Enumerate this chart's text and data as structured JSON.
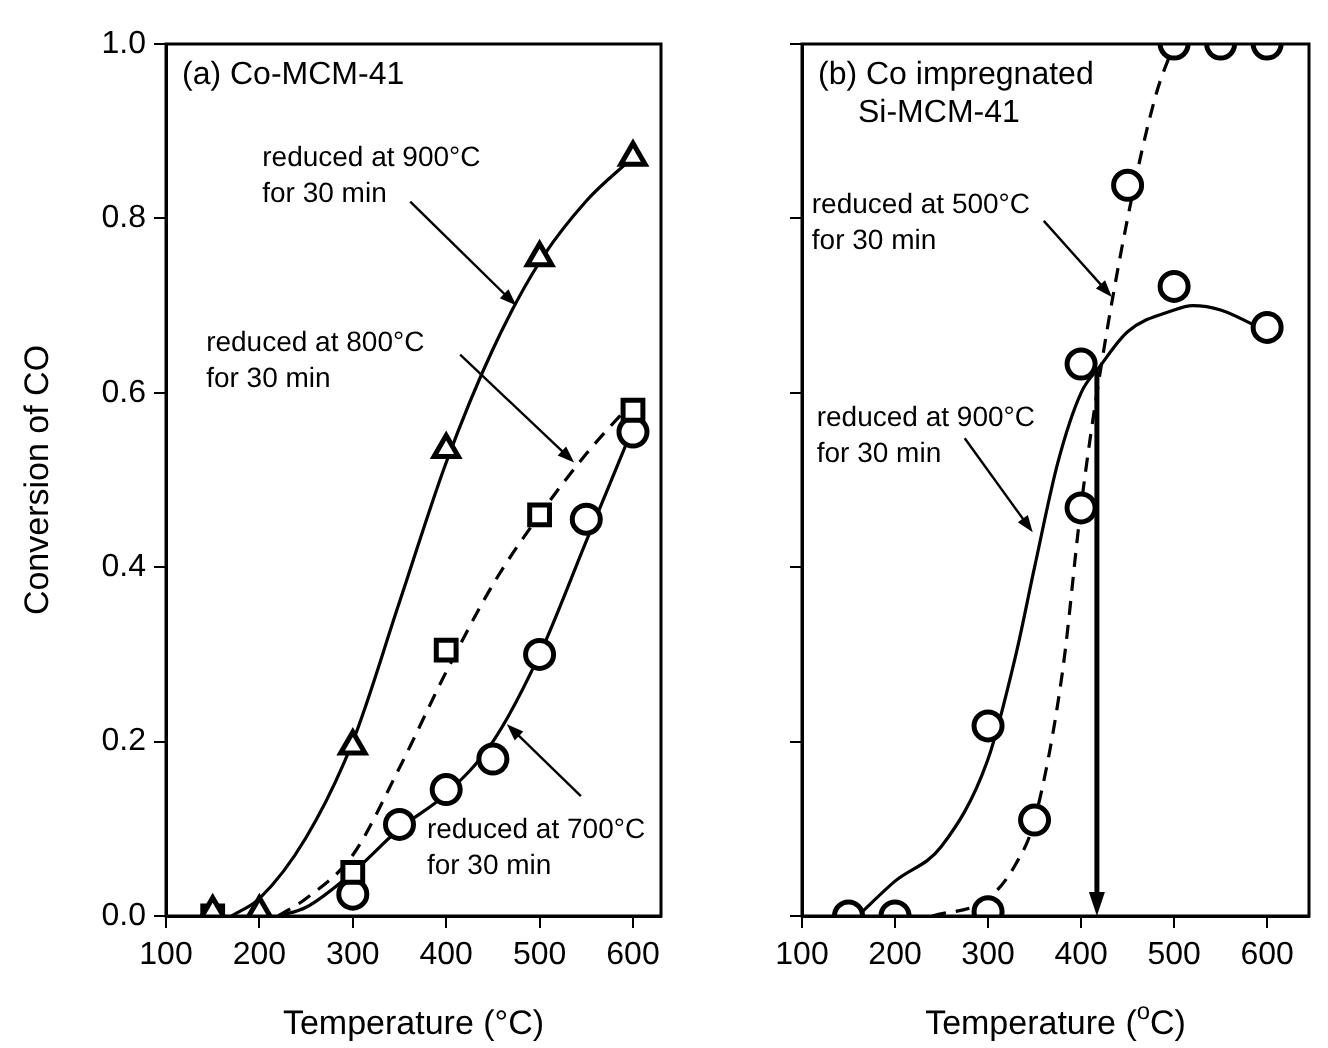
{
  "chart_data": [
    {
      "type": "scatter",
      "title": "(a) Co-MCM-41",
      "xlabel": "Temperature (°C)",
      "ylabel": "Conversion of CO",
      "xlim": [
        100,
        630
      ],
      "xticks": [
        100,
        200,
        300,
        400,
        500,
        600
      ],
      "ylim": [
        0,
        1.0
      ],
      "yticks": [
        {
          "value": 0,
          "label": "0.0"
        },
        {
          "value": 0.2,
          "label": "0.2"
        },
        {
          "value": 0.4,
          "label": "0.4"
        },
        {
          "value": 0.6,
          "label": "0.6"
        },
        {
          "value": 0.8,
          "label": "0.8"
        },
        {
          "value": 1.0,
          "label": "1.0"
        }
      ],
      "grid": false,
      "legend": false,
      "series": [
        {
          "type": "scatter",
          "marker": "triangle",
          "color": "#000000",
          "x": [
            150,
            200,
            300,
            400,
            500,
            600
          ],
          "values": [
            0.005,
            0.005,
            0.195,
            0.535,
            0.755,
            0.87
          ]
        },
        {
          "type": "scatter",
          "marker": "square",
          "color": "#000000",
          "x": [
            150,
            300,
            400,
            500,
            600
          ],
          "values": [
            0.0,
            0.05,
            0.305,
            0.46,
            0.58
          ]
        },
        {
          "type": "scatter",
          "marker": "circle",
          "color": "#000000",
          "x": [
            300,
            350,
            400,
            450,
            500,
            550,
            600
          ],
          "values": [
            0.025,
            0.105,
            0.145,
            0.18,
            0.3,
            0.455,
            0.555
          ]
        },
        {
          "type": "line",
          "line_style": "solid",
          "color": "#000000",
          "x": [
            170,
            200,
            250,
            300,
            350,
            400,
            450,
            500,
            550,
            600
          ],
          "values": [
            0.0,
            0.02,
            0.09,
            0.2,
            0.36,
            0.52,
            0.65,
            0.75,
            0.82,
            0.87
          ]
        },
        {
          "type": "line",
          "line_style": "dashed",
          "color": "#000000",
          "x": [
            220,
            250,
            300,
            350,
            400,
            450,
            500,
            550,
            600
          ],
          "values": [
            0.0,
            0.02,
            0.07,
            0.17,
            0.28,
            0.38,
            0.46,
            0.53,
            0.59
          ]
        },
        {
          "type": "line",
          "line_style": "solid",
          "color": "#000000",
          "x": [
            220,
            250,
            300,
            350,
            400,
            450,
            500,
            550,
            600
          ],
          "values": [
            0.0,
            0.01,
            0.05,
            0.1,
            0.14,
            0.2,
            0.3,
            0.43,
            0.56
          ]
        }
      ],
      "annotations": [
        {
          "text": "reduced at 900°C\nfor 30 min",
          "x": 475,
          "y": 0.7
        },
        {
          "text": "reduced at 800°C\nfor 30 min",
          "x": 537,
          "y": 0.52
        },
        {
          "text": "reduced at 700°C\nfor 30 min",
          "x": 465,
          "y": 0.22
        }
      ]
    },
    {
      "type": "scatter",
      "title": "(b) Co impregnated\nSi-MCM-41",
      "xlabel": "Temperature ($^{o}$C)",
      "xlim": [
        100,
        645
      ],
      "xticks": [
        100,
        200,
        300,
        400,
        500,
        600
      ],
      "ylim": [
        0,
        1.0
      ],
      "yticks": [
        0,
        0.2,
        0.4,
        0.6,
        0.8,
        1.0
      ],
      "tick_labels": "x",
      "grid": false,
      "legend": false,
      "series": [
        {
          "type": "scatter",
          "marker": "circle",
          "color": "#000000",
          "x": [
            150,
            300,
            400,
            500,
            600
          ],
          "values": [
            0.0,
            0.218,
            0.633,
            0.722,
            0.675
          ]
        },
        {
          "type": "scatter",
          "marker": "circle",
          "color": "#000000",
          "x": [
            200,
            300,
            350,
            400,
            450,
            500,
            550,
            600
          ],
          "values": [
            0.0,
            0.005,
            0.11,
            0.468,
            0.838,
            1.0,
            1.0,
            1.0
          ]
        },
        {
          "type": "line",
          "line_style": "solid",
          "color": "#000000",
          "x": [
            160,
            200,
            250,
            300,
            330,
            350,
            375,
            400,
            420,
            450,
            500,
            520,
            550,
            600
          ],
          "values": [
            0.0,
            0.04,
            0.08,
            0.18,
            0.3,
            0.4,
            0.52,
            0.6,
            0.63,
            0.67,
            0.695,
            0.7,
            0.695,
            0.67
          ]
        },
        {
          "type": "line",
          "line_style": "dashed",
          "color": "#000000",
          "x": [
            240,
            300,
            330,
            350,
            380,
            400,
            420,
            450,
            480,
            500
          ],
          "values": [
            0.0,
            0.02,
            0.06,
            0.11,
            0.28,
            0.47,
            0.62,
            0.8,
            0.94,
            1.0
          ]
        }
      ],
      "ref_lines": [
        {
          "axis": "x",
          "value": 417
        }
      ],
      "annotations": [
        {
          "text": "reduced at 500°C\nfor 30 min",
          "x": 433,
          "y": 0.71
        },
        {
          "text": "reduced at 900°C\nfor 30 min",
          "x": 348,
          "y": 0.44
        }
      ]
    }
  ]
}
